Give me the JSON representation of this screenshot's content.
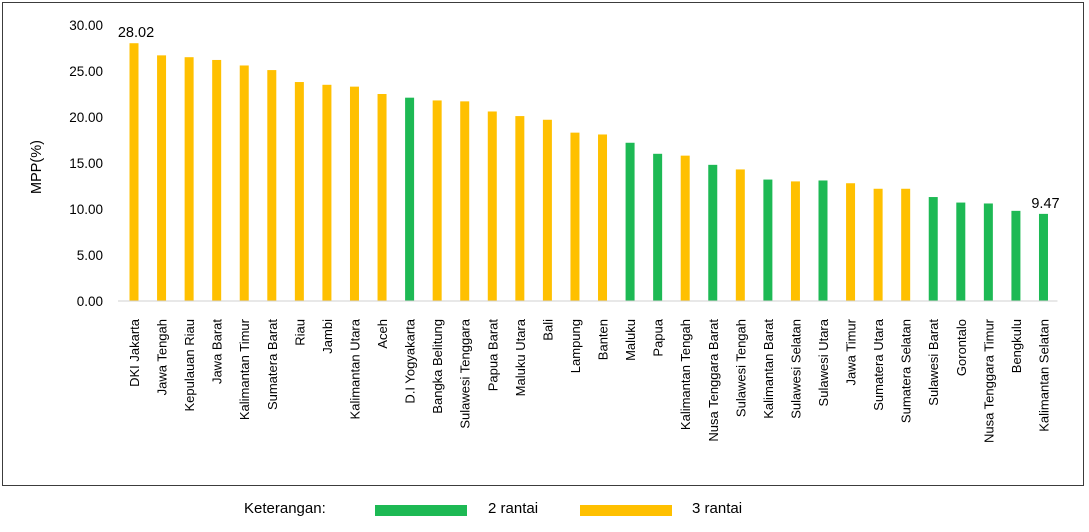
{
  "chart_data": {
    "type": "bar",
    "title": "",
    "xlabel": "",
    "ylabel": "MPP(%)",
    "ylim": [
      0,
      30
    ],
    "yticks": [
      "0.00",
      "5.00",
      "10.00",
      "15.00",
      "20.00",
      "25.00",
      "30.00"
    ],
    "grid": false,
    "legend_position": "bottom",
    "legend_title": "Keterangan:",
    "colors": {
      "2 rantai": "#1DB954",
      "3 rantai": "#FFC000"
    },
    "categories": [
      "DKI Jakarta",
      "Jawa Tengah",
      "Kepulauan Riau",
      "Jawa Barat",
      "Kalimantan Timur",
      "Sumatera Barat",
      "Riau",
      "Jambi",
      "Kalimantan Utara",
      "Aceh",
      "D.I Yogyakarta",
      "Bangka Belitung",
      "Sulawesi Tenggara",
      "Papua Barat",
      "Maluku Utara",
      "Bali",
      "Lampung",
      "Banten",
      "Maluku",
      "Papua",
      "Kalimantan Tengah",
      "Nusa Tenggara Barat",
      "Sulawesi Tengah",
      "Kalimantan Barat",
      "Sulawesi Selatan",
      "Sulawesi Utara",
      "Jawa Timur",
      "Sumatera Utara",
      "Sumatera Selatan",
      "Sulawesi Barat",
      "Gorontalo",
      "Nusa Tenggara Timur",
      "Bengkulu",
      "Kalimantan Selatan"
    ],
    "values": [
      28.02,
      26.7,
      26.5,
      26.2,
      25.6,
      25.1,
      23.8,
      23.5,
      23.3,
      22.5,
      22.1,
      21.8,
      21.7,
      20.6,
      20.1,
      19.7,
      18.3,
      18.1,
      17.2,
      16.0,
      15.8,
      14.8,
      14.3,
      13.2,
      13.0,
      13.1,
      12.8,
      12.2,
      12.2,
      11.3,
      10.7,
      10.6,
      9.8,
      9.47
    ],
    "groups": [
      "3 rantai",
      "3 rantai",
      "3 rantai",
      "3 rantai",
      "3 rantai",
      "3 rantai",
      "3 rantai",
      "3 rantai",
      "3 rantai",
      "3 rantai",
      "2 rantai",
      "3 rantai",
      "3 rantai",
      "3 rantai",
      "3 rantai",
      "3 rantai",
      "3 rantai",
      "3 rantai",
      "2 rantai",
      "2 rantai",
      "3 rantai",
      "2 rantai",
      "3 rantai",
      "2 rantai",
      "3 rantai",
      "2 rantai",
      "3 rantai",
      "3 rantai",
      "3 rantai",
      "2 rantai",
      "2 rantai",
      "2 rantai",
      "2 rantai",
      "2 rantai"
    ],
    "data_labels": [
      {
        "category": "DKI Jakarta",
        "text": "28.02"
      },
      {
        "category": "Kalimantan Selatan",
        "text": "9.47"
      }
    ]
  },
  "legend": {
    "title": "Keterangan:",
    "items": [
      {
        "label": "2 rantai",
        "color": "#1DB954"
      },
      {
        "label": "3 rantai",
        "color": "#FFC000"
      }
    ]
  }
}
